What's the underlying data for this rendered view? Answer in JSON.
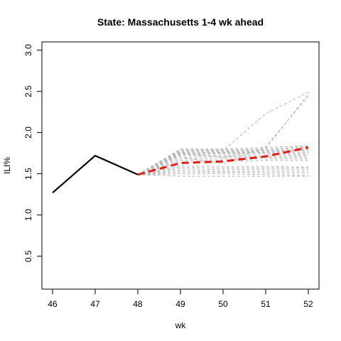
{
  "chart_data": {
    "type": "line",
    "title": "State: Massachusetts 1-4 wk ahead",
    "xlabel": "wk",
    "ylabel": "ILI%",
    "xlim": [
      46,
      52
    ],
    "ylim": [
      0.1,
      3.1
    ],
    "x_ticks": [
      "46",
      "47",
      "48",
      "49",
      "50",
      "51",
      "52"
    ],
    "y_ticks": [
      "0.5",
      "1.0",
      "1.5",
      "2.0",
      "2.5",
      "3.0"
    ],
    "grid": false,
    "legend": "none",
    "colors": {
      "observed": "#000000",
      "trajectory": "#b8b8b8",
      "forecast": "#e8190f"
    },
    "observed": {
      "x": [
        46,
        47,
        48
      ],
      "y": [
        1.27,
        1.72,
        1.49
      ]
    },
    "forecast": {
      "x": [
        48,
        49,
        50,
        51,
        52
      ],
      "y": [
        1.49,
        1.63,
        1.65,
        1.71,
        1.82
      ]
    },
    "trajectories": [
      {
        "x": [
          48,
          49,
          50,
          51,
          52
        ],
        "y": [
          1.49,
          1.8,
          1.8,
          1.82,
          1.84
        ]
      },
      {
        "x": [
          48,
          49,
          50,
          51,
          52
        ],
        "y": [
          1.49,
          1.79,
          1.79,
          1.8,
          1.83
        ]
      },
      {
        "x": [
          48,
          49,
          50,
          51,
          52
        ],
        "y": [
          1.49,
          1.78,
          1.78,
          1.79,
          1.82
        ]
      },
      {
        "x": [
          48,
          49,
          50,
          51,
          52
        ],
        "y": [
          1.49,
          1.77,
          1.77,
          1.78,
          1.8
        ]
      },
      {
        "x": [
          48,
          49,
          50,
          51,
          52
        ],
        "y": [
          1.49,
          1.76,
          1.76,
          1.77,
          1.79
        ]
      },
      {
        "x": [
          48,
          49,
          50,
          51,
          52
        ],
        "y": [
          1.49,
          1.75,
          1.76,
          1.76,
          1.78
        ]
      },
      {
        "x": [
          48,
          49,
          50,
          51,
          52
        ],
        "y": [
          1.49,
          1.74,
          1.75,
          1.75,
          1.76
        ]
      },
      {
        "x": [
          48,
          49,
          50,
          51,
          52
        ],
        "y": [
          1.49,
          1.73,
          1.74,
          1.75,
          1.74
        ]
      },
      {
        "x": [
          48,
          49,
          50,
          51,
          52
        ],
        "y": [
          1.49,
          1.72,
          1.72,
          1.73,
          1.73
        ]
      },
      {
        "x": [
          48,
          49,
          50,
          51,
          52
        ],
        "y": [
          1.49,
          1.7,
          1.71,
          1.71,
          1.72
        ]
      },
      {
        "x": [
          48,
          49,
          50,
          51,
          52
        ],
        "y": [
          1.49,
          1.68,
          1.69,
          1.7,
          1.7
        ]
      },
      {
        "x": [
          48,
          49,
          50,
          51,
          52
        ],
        "y": [
          1.49,
          1.66,
          1.67,
          1.68,
          1.68
        ]
      },
      {
        "x": [
          48,
          49,
          50,
          51,
          52
        ],
        "y": [
          1.49,
          1.64,
          1.65,
          1.66,
          1.66
        ]
      },
      {
        "x": [
          48,
          49,
          50,
          51,
          52
        ],
        "y": [
          1.49,
          1.79,
          1.78,
          2.23,
          2.49
        ]
      },
      {
        "x": [
          48,
          49,
          50,
          51,
          52
        ],
        "y": [
          1.49,
          1.75,
          1.7,
          1.8,
          2.47
        ]
      },
      {
        "x": [
          48,
          49,
          50,
          51,
          52
        ],
        "y": [
          1.49,
          1.7,
          1.62,
          1.83,
          2.44
        ]
      },
      {
        "x": [
          48,
          49,
          50,
          51,
          52
        ],
        "y": [
          1.49,
          1.6,
          1.59,
          1.59,
          1.58
        ]
      },
      {
        "x": [
          48,
          49,
          50,
          51,
          52
        ],
        "y": [
          1.49,
          1.58,
          1.57,
          1.57,
          1.57
        ]
      },
      {
        "x": [
          48,
          49,
          50,
          51,
          52
        ],
        "y": [
          1.49,
          1.56,
          1.55,
          1.55,
          1.55
        ]
      },
      {
        "x": [
          48,
          49,
          50,
          51,
          52
        ],
        "y": [
          1.49,
          1.54,
          1.53,
          1.53,
          1.53
        ]
      },
      {
        "x": [
          48,
          49,
          50,
          51,
          52
        ],
        "y": [
          1.49,
          1.52,
          1.52,
          1.51,
          1.51
        ]
      },
      {
        "x": [
          48,
          49,
          50,
          51,
          52
        ],
        "y": [
          1.49,
          1.5,
          1.5,
          1.49,
          1.48
        ]
      },
      {
        "x": [
          48,
          49,
          50,
          51,
          52
        ],
        "y": [
          1.49,
          1.47,
          1.47,
          1.47,
          1.47
        ]
      }
    ]
  }
}
